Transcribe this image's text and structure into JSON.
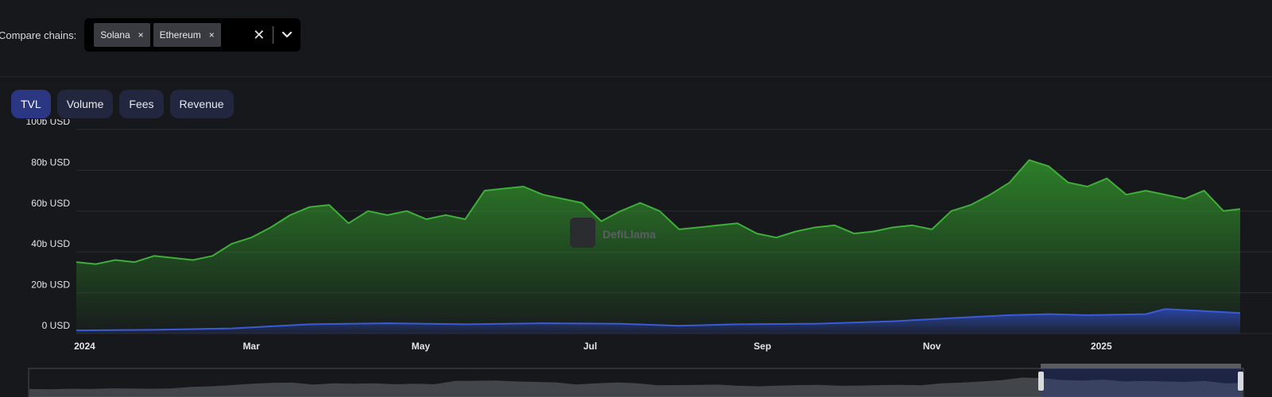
{
  "compare": {
    "label": "Compare chains:",
    "chips": [
      {
        "label": "Solana"
      },
      {
        "label": "Ethereum"
      }
    ],
    "chip_remove_glyph": "×",
    "clear_glyph": "✕",
    "icons": [
      "close-icon",
      "chevron-down-icon"
    ]
  },
  "tabs": [
    {
      "label": "TVL",
      "active": true
    },
    {
      "label": "Volume",
      "active": false
    },
    {
      "label": "Fees",
      "active": false
    },
    {
      "label": "Revenue",
      "active": false
    }
  ],
  "watermark": "DefiLlama",
  "colors": {
    "ethereum_line": "#3fae3a",
    "solana_line": "#3b5bd6",
    "background": "#17181c",
    "tab_active": "#2c3784",
    "tab_inactive": "#22263f"
  },
  "chart_data": {
    "type": "area",
    "x_type": "date",
    "y_unit": "USD",
    "ylim": [
      0,
      100000000000
    ],
    "yticks": [
      "0 USD",
      "20b USD",
      "40b USD",
      "60b USD",
      "80b USD",
      "100b USD"
    ],
    "xticks": [
      "2024",
      "Mar",
      "May",
      "Jul",
      "Sep",
      "Nov",
      "2025"
    ],
    "xlim": [
      "2023-12-29",
      "2025-02-20"
    ],
    "grid": true,
    "legend": "none",
    "series": [
      {
        "name": "Ethereum",
        "color": "#3fae3a",
        "points": [
          [
            "2023-12-29",
            35
          ],
          [
            "2024-01-05",
            34
          ],
          [
            "2024-01-12",
            36
          ],
          [
            "2024-01-19",
            35
          ],
          [
            "2024-01-26",
            38
          ],
          [
            "2024-02-02",
            37
          ],
          [
            "2024-02-09",
            36
          ],
          [
            "2024-02-16",
            38
          ],
          [
            "2024-02-23",
            44
          ],
          [
            "2024-03-01",
            47
          ],
          [
            "2024-03-08",
            52
          ],
          [
            "2024-03-15",
            58
          ],
          [
            "2024-03-22",
            62
          ],
          [
            "2024-03-29",
            63
          ],
          [
            "2024-04-05",
            54
          ],
          [
            "2024-04-12",
            60
          ],
          [
            "2024-04-19",
            58
          ],
          [
            "2024-04-26",
            60
          ],
          [
            "2024-05-03",
            56
          ],
          [
            "2024-05-10",
            58
          ],
          [
            "2024-05-17",
            56
          ],
          [
            "2024-05-24",
            70
          ],
          [
            "2024-05-31",
            71
          ],
          [
            "2024-06-07",
            72
          ],
          [
            "2024-06-14",
            68
          ],
          [
            "2024-06-21",
            66
          ],
          [
            "2024-06-28",
            64
          ],
          [
            "2024-07-05",
            55
          ],
          [
            "2024-07-12",
            60
          ],
          [
            "2024-07-19",
            64
          ],
          [
            "2024-07-26",
            60
          ],
          [
            "2024-08-02",
            51
          ],
          [
            "2024-08-09",
            52
          ],
          [
            "2024-08-16",
            53
          ],
          [
            "2024-08-23",
            54
          ],
          [
            "2024-08-30",
            49
          ],
          [
            "2024-09-06",
            47
          ],
          [
            "2024-09-13",
            50
          ],
          [
            "2024-09-20",
            52
          ],
          [
            "2024-09-27",
            53
          ],
          [
            "2024-10-04",
            49
          ],
          [
            "2024-10-11",
            50
          ],
          [
            "2024-10-18",
            52
          ],
          [
            "2024-10-25",
            53
          ],
          [
            "2024-11-01",
            51
          ],
          [
            "2024-11-08",
            60
          ],
          [
            "2024-11-15",
            63
          ],
          [
            "2024-11-22",
            68
          ],
          [
            "2024-11-29",
            74
          ],
          [
            "2024-12-06",
            85
          ],
          [
            "2024-12-13",
            82
          ],
          [
            "2024-12-20",
            74
          ],
          [
            "2024-12-27",
            72
          ],
          [
            "2025-01-03",
            76
          ],
          [
            "2025-01-10",
            68
          ],
          [
            "2025-01-17",
            70
          ],
          [
            "2025-01-24",
            68
          ],
          [
            "2025-01-31",
            66
          ],
          [
            "2025-02-07",
            70
          ],
          [
            "2025-02-14",
            60
          ],
          [
            "2025-02-20",
            61
          ]
        ]
      },
      {
        "name": "Solana",
        "color": "#3b5bd6",
        "points": [
          [
            "2023-12-29",
            1.5
          ],
          [
            "2024-01-26",
            1.8
          ],
          [
            "2024-02-23",
            2.5
          ],
          [
            "2024-03-22",
            4.5
          ],
          [
            "2024-04-19",
            5.0
          ],
          [
            "2024-05-17",
            4.5
          ],
          [
            "2024-06-14",
            5.0
          ],
          [
            "2024-07-12",
            4.8
          ],
          [
            "2024-08-02",
            3.8
          ],
          [
            "2024-08-23",
            4.5
          ],
          [
            "2024-09-20",
            4.8
          ],
          [
            "2024-10-18",
            6.0
          ],
          [
            "2024-11-15",
            8.0
          ],
          [
            "2024-11-29",
            9.0
          ],
          [
            "2024-12-13",
            9.5
          ],
          [
            "2024-12-27",
            9.0
          ],
          [
            "2025-01-17",
            9.5
          ],
          [
            "2025-01-24",
            12.0
          ],
          [
            "2025-02-07",
            11.0
          ],
          [
            "2025-02-20",
            10.0
          ]
        ]
      }
    ]
  }
}
